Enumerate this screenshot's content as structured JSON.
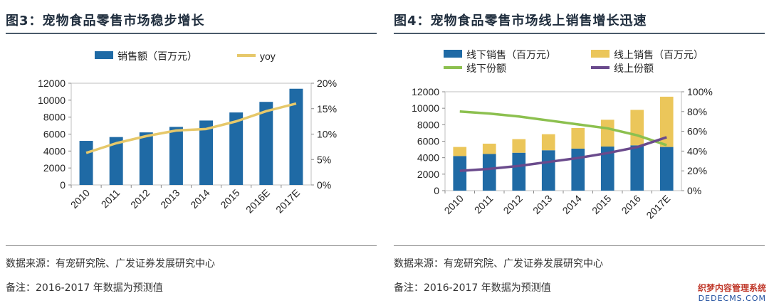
{
  "left": {
    "title": "图3：宠物食品零售市场稳步增长",
    "source": "数据来源：有宠研究院、广发证券发展研究中心",
    "remark": "备注：2016-2017 年数据为预测值"
  },
  "right": {
    "title": "图4：宠物食品零售市场线上销售增长迅速",
    "source": "数据来源：有宠研究院、广发证券发展研究中心",
    "remark": "备注：2016-2017 年数据为预测值"
  },
  "watermark": {
    "line1": "织梦内容管理系统",
    "line2": "DEDECMS.COM"
  },
  "chart_data": [
    {
      "type": "bar",
      "title": "宠物食品零售市场稳步增长",
      "categories": [
        "2010",
        "2011",
        "2012",
        "2013",
        "2014",
        "2015",
        "2016E",
        "2017E"
      ],
      "series": [
        {
          "name": "销售额（百万元）",
          "type": "bar",
          "axis": "left",
          "color": "#1f6aa5",
          "values": [
            5200,
            5650,
            6200,
            6850,
            7600,
            8550,
            9800,
            11350
          ]
        },
        {
          "name": "yoy",
          "type": "line",
          "axis": "right",
          "color": "#e6c86a",
          "values": [
            6.3,
            8.2,
            9.6,
            10.7,
            11.0,
            12.5,
            14.5,
            16.0
          ]
        }
      ],
      "y_left": {
        "min": 0,
        "max": 12000,
        "ticks": [
          "0",
          "2000",
          "4000",
          "6000",
          "8000",
          "10000",
          "12000"
        ]
      },
      "y_right": {
        "min": 0,
        "max": 20,
        "ticks": [
          "0%",
          "5%",
          "10%",
          "15%",
          "20%"
        ]
      },
      "legend": "top"
    },
    {
      "type": "bar",
      "title": "宠物食品零售市场线上销售增长迅速",
      "categories": [
        "2010",
        "2011",
        "2012",
        "2013",
        "2014",
        "2015",
        "2016",
        "2017E"
      ],
      "series": [
        {
          "name": "线下销售（百万元）",
          "type": "bar",
          "stack": true,
          "axis": "left",
          "color": "#1f6aa5",
          "values": [
            4200,
            4450,
            4600,
            4900,
            5100,
            5350,
            5500,
            5300
          ]
        },
        {
          "name": "线上销售（百万元）",
          "type": "bar",
          "stack": true,
          "axis": "left",
          "color": "#ebc65a",
          "values": [
            1100,
            1250,
            1650,
            1950,
            2500,
            3250,
            4300,
            6100
          ]
        },
        {
          "name": "线下份额",
          "type": "line",
          "axis": "right",
          "color": "#8cc04f",
          "values": [
            80,
            78,
            75,
            71,
            67,
            63,
            56,
            46
          ]
        },
        {
          "name": "线上份额",
          "type": "line",
          "axis": "right",
          "color": "#6a4a8c",
          "values": [
            20,
            22,
            25,
            29,
            33,
            38,
            44,
            54
          ]
        }
      ],
      "y_left": {
        "min": 0,
        "max": 12000,
        "ticks": [
          "0",
          "2000",
          "4000",
          "6000",
          "8000",
          "10000",
          "12000"
        ]
      },
      "y_right": {
        "min": 0,
        "max": 100,
        "ticks": [
          "0%",
          "20%",
          "40%",
          "60%",
          "80%",
          "100%"
        ]
      },
      "legend": "top"
    }
  ]
}
